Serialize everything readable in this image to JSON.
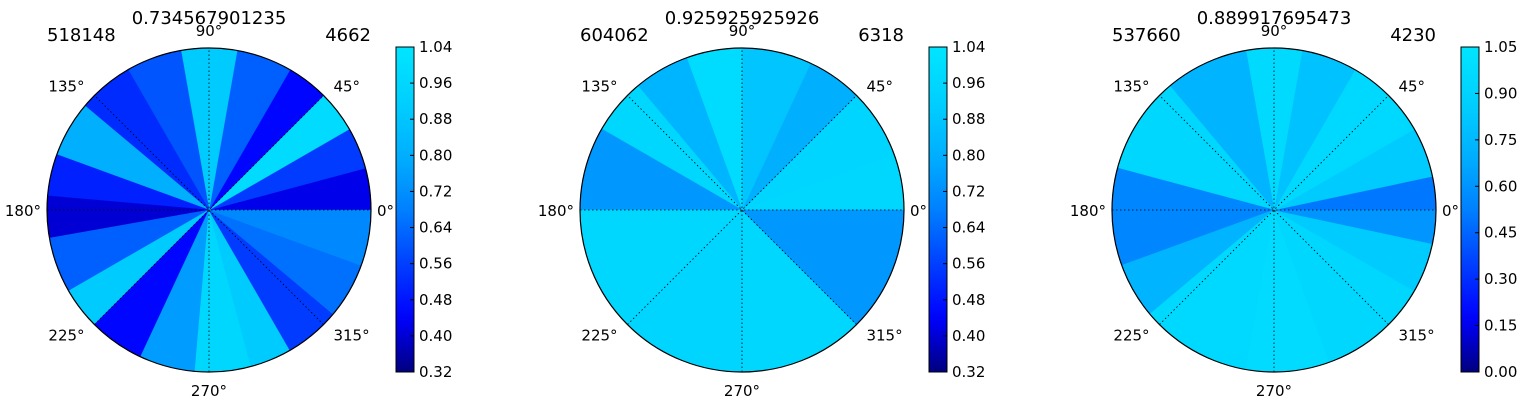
{
  "colors": {
    "background": "#ffffff",
    "axis": "#000000",
    "grid": "#000000",
    "cmap": [
      "#00007f",
      "#0000ff",
      "#0040ff",
      "#0080ff",
      "#00b0ff",
      "#00d0ff",
      "#00e5ff"
    ]
  },
  "chart_data": [
    {
      "type": "heatmap",
      "projection": "polar",
      "title": "0.734567901235",
      "left_label": "518148",
      "right_label": "4662",
      "angle_tick_labels": [
        "0°",
        "45°",
        "90°",
        "135°",
        "180°",
        "225°",
        "270°",
        "315°"
      ],
      "grid": true,
      "colorbar": {
        "ticks": [
          "1.04",
          "0.96",
          "0.88",
          "0.80",
          "0.72",
          "0.64",
          "0.56",
          "0.48",
          "0.40",
          "0.32"
        ],
        "range": [
          0.32,
          1.04
        ]
      },
      "sectors": [
        {
          "start": 0,
          "end": 15,
          "value": 0.42
        },
        {
          "start": 15,
          "end": 30,
          "value": 0.55
        },
        {
          "start": 30,
          "end": 45,
          "value": 0.98
        },
        {
          "start": 45,
          "end": 60,
          "value": 0.45
        },
        {
          "start": 60,
          "end": 80,
          "value": 0.62
        },
        {
          "start": 80,
          "end": 100,
          "value": 0.9
        },
        {
          "start": 100,
          "end": 120,
          "value": 0.6
        },
        {
          "start": 120,
          "end": 140,
          "value": 0.52
        },
        {
          "start": 140,
          "end": 160,
          "value": 0.8
        },
        {
          "start": 160,
          "end": 175,
          "value": 0.5
        },
        {
          "start": 175,
          "end": 190,
          "value": 0.4
        },
        {
          "start": 190,
          "end": 210,
          "value": 0.62
        },
        {
          "start": 210,
          "end": 225,
          "value": 0.9
        },
        {
          "start": 225,
          "end": 245,
          "value": 0.45
        },
        {
          "start": 245,
          "end": 265,
          "value": 0.75
        },
        {
          "start": 265,
          "end": 285,
          "value": 0.96
        },
        {
          "start": 285,
          "end": 300,
          "value": 0.9
        },
        {
          "start": 300,
          "end": 320,
          "value": 0.55
        },
        {
          "start": 320,
          "end": 340,
          "value": 0.65
        },
        {
          "start": 340,
          "end": 360,
          "value": 0.7
        }
      ]
    },
    {
      "type": "heatmap",
      "projection": "polar",
      "title": "0.925925925926",
      "left_label": "604062",
      "right_label": "6318",
      "angle_tick_labels": [
        "0°",
        "45°",
        "90°",
        "135°",
        "180°",
        "225°",
        "270°",
        "315°"
      ],
      "grid": true,
      "colorbar": {
        "ticks": [
          "1.04",
          "0.96",
          "0.88",
          "0.80",
          "0.72",
          "0.64",
          "0.56",
          "0.48",
          "0.40",
          "0.32"
        ],
        "range": [
          0.32,
          1.04
        ]
      },
      "sectors": [
        {
          "start": 0,
          "end": 20,
          "value": 0.96
        },
        {
          "start": 20,
          "end": 45,
          "value": 0.95
        },
        {
          "start": 45,
          "end": 65,
          "value": 0.8
        },
        {
          "start": 65,
          "end": 90,
          "value": 0.88
        },
        {
          "start": 90,
          "end": 110,
          "value": 0.99
        },
        {
          "start": 110,
          "end": 130,
          "value": 0.82
        },
        {
          "start": 130,
          "end": 150,
          "value": 0.96
        },
        {
          "start": 150,
          "end": 180,
          "value": 0.74
        },
        {
          "start": 180,
          "end": 225,
          "value": 0.96
        },
        {
          "start": 225,
          "end": 270,
          "value": 0.95
        },
        {
          "start": 270,
          "end": 315,
          "value": 0.96
        },
        {
          "start": 315,
          "end": 360,
          "value": 0.74
        }
      ]
    },
    {
      "type": "heatmap",
      "projection": "polar",
      "title": "0.889917695473",
      "left_label": "537660",
      "right_label": "4230",
      "angle_tick_labels": [
        "0°",
        "45°",
        "90°",
        "135°",
        "180°",
        "225°",
        "270°",
        "315°"
      ],
      "grid": true,
      "colorbar": {
        "ticks": [
          "1.05",
          "0.90",
          "0.75",
          "0.60",
          "0.45",
          "0.30",
          "0.15",
          "0.00"
        ],
        "range": [
          0.0,
          1.05
        ]
      },
      "sectors": [
        {
          "start": 0,
          "end": 12,
          "value": 0.5
        },
        {
          "start": 12,
          "end": 30,
          "value": 0.85
        },
        {
          "start": 30,
          "end": 60,
          "value": 0.95
        },
        {
          "start": 60,
          "end": 80,
          "value": 0.8
        },
        {
          "start": 80,
          "end": 100,
          "value": 0.96
        },
        {
          "start": 100,
          "end": 130,
          "value": 0.72
        },
        {
          "start": 130,
          "end": 165,
          "value": 0.93
        },
        {
          "start": 165,
          "end": 200,
          "value": 0.55
        },
        {
          "start": 200,
          "end": 220,
          "value": 0.72
        },
        {
          "start": 220,
          "end": 260,
          "value": 0.95
        },
        {
          "start": 260,
          "end": 290,
          "value": 0.97
        },
        {
          "start": 290,
          "end": 330,
          "value": 0.93
        },
        {
          "start": 330,
          "end": 348,
          "value": 0.85
        },
        {
          "start": 348,
          "end": 360,
          "value": 0.6
        }
      ]
    }
  ]
}
